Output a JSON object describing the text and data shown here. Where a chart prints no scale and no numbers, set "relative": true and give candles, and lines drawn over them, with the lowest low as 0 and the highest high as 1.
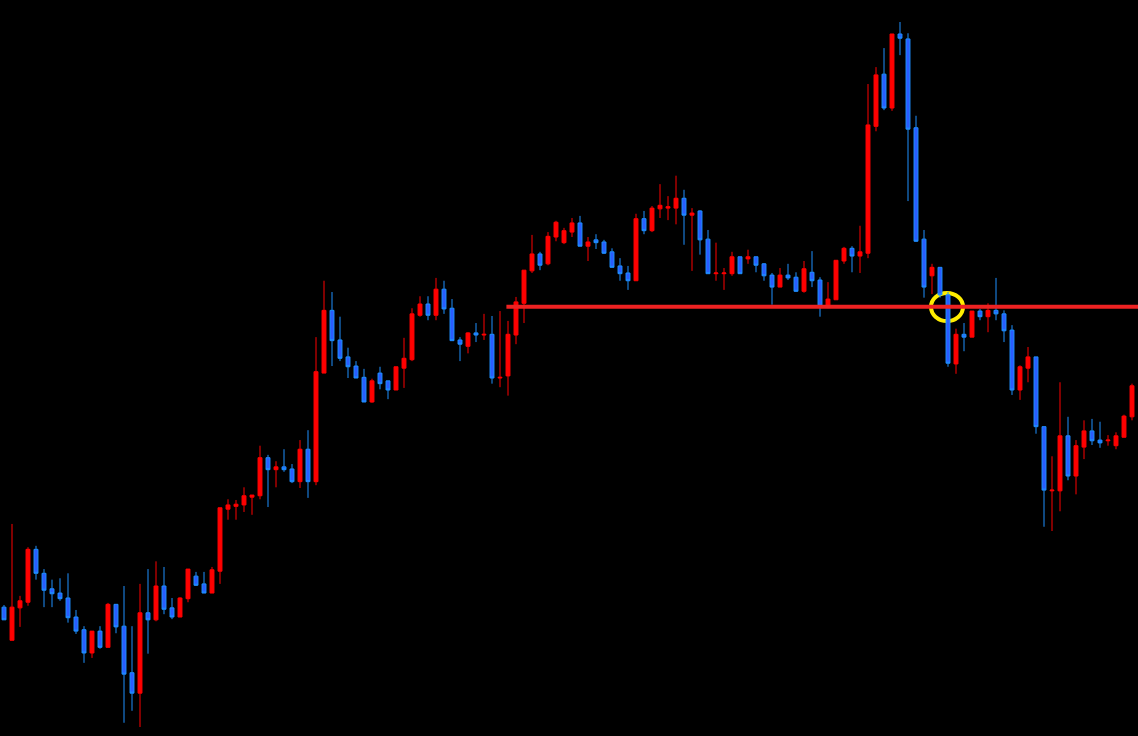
{
  "chart_data": {
    "type": "candlestick",
    "relative": true,
    "grid": false,
    "legend": false,
    "categories": [
      null,
      null,
      null,
      null,
      null,
      null,
      null,
      null,
      null,
      null,
      null,
      null,
      null,
      null,
      null,
      null,
      null,
      null,
      null,
      null,
      null,
      null,
      null,
      null,
      null,
      null,
      null,
      null,
      null,
      null,
      null,
      null,
      null,
      null,
      null,
      null,
      null,
      null,
      null,
      null,
      null,
      null,
      null,
      null,
      null,
      null,
      null,
      null,
      null,
      null,
      null,
      null,
      null,
      null,
      null,
      null,
      null,
      null,
      null,
      null,
      null,
      null,
      null,
      null,
      null,
      null,
      null,
      null,
      null,
      null,
      null,
      null,
      null,
      null,
      null,
      null,
      null,
      null,
      null,
      null,
      null,
      null,
      null,
      null,
      null,
      null,
      null,
      null,
      null,
      null,
      null,
      null,
      null,
      null,
      null,
      null,
      null,
      null,
      null,
      null,
      null,
      null,
      null,
      null,
      null,
      null,
      null,
      null,
      null,
      null,
      null,
      null,
      null,
      null,
      null,
      null,
      null,
      null,
      null,
      null,
      null,
      null,
      null,
      null,
      null,
      null,
      null,
      null,
      null,
      null,
      null,
      null,
      null,
      null,
      null,
      null,
      null,
      null,
      null,
      null,
      null,
      null
    ],
    "ohlc": [
      [
        0.17,
        0.173,
        0.152,
        0.152
      ],
      [
        0.123,
        0.288,
        0.123,
        0.17
      ],
      [
        0.169,
        0.186,
        0.142,
        0.179
      ],
      [
        0.177,
        0.255,
        0.172,
        0.252
      ],
      [
        0.252,
        0.257,
        0.209,
        0.218
      ],
      [
        0.218,
        0.224,
        0.17,
        0.194
      ],
      [
        0.196,
        0.209,
        0.17,
        0.189
      ],
      [
        0.19,
        0.211,
        0.179,
        0.182
      ],
      [
        0.183,
        0.218,
        0.148,
        0.155
      ],
      [
        0.156,
        0.166,
        0.132,
        0.136
      ],
      [
        0.138,
        0.143,
        0.091,
        0.105
      ],
      [
        0.105,
        0.136,
        0.098,
        0.136
      ],
      [
        0.136,
        0.143,
        0.111,
        0.113
      ],
      [
        0.113,
        0.176,
        0.113,
        0.174
      ],
      [
        0.174,
        0.174,
        0.133,
        0.142
      ],
      [
        0.143,
        0.2,
        0.006,
        0.075
      ],
      [
        0.077,
        0.143,
        0.023,
        0.048
      ],
      [
        0.048,
        0.203,
        0,
        0.162
      ],
      [
        0.162,
        0.224,
        0.104,
        0.152
      ],
      [
        0.152,
        0.235,
        0.15,
        0.2
      ],
      [
        0.2,
        0.227,
        0.16,
        0.167
      ],
      [
        0.169,
        0.183,
        0.153,
        0.156
      ],
      [
        0.156,
        0.184,
        0.156,
        0.183
      ],
      [
        0.182,
        0.224,
        0.177,
        0.224
      ],
      [
        0.214,
        0.22,
        0.2,
        0.201
      ],
      [
        0.203,
        0.22,
        0.19,
        0.19
      ],
      [
        0.19,
        0.227,
        0.19,
        0.223
      ],
      [
        0.221,
        0.311,
        0.203,
        0.311
      ],
      [
        0.309,
        0.323,
        0.294,
        0.315
      ],
      [
        0.313,
        0.322,
        0.294,
        0.316
      ],
      [
        0.315,
        0.34,
        0.305,
        0.328
      ],
      [
        0.326,
        0.329,
        0.301,
        0.329
      ],
      [
        0.328,
        0.399,
        0.323,
        0.382
      ],
      [
        0.382,
        0.386,
        0.312,
        0.365
      ],
      [
        0.365,
        0.377,
        0.34,
        0.369
      ],
      [
        0.369,
        0.394,
        0.362,
        0.365
      ],
      [
        0.366,
        0.373,
        0.346,
        0.348
      ],
      [
        0.348,
        0.407,
        0.339,
        0.394
      ],
      [
        0.394,
        0.421,
        0.325,
        0.348
      ],
      [
        0.348,
        0.553,
        0.343,
        0.504
      ],
      [
        0.502,
        0.633,
        0.502,
        0.591
      ],
      [
        0.591,
        0.617,
        0.512,
        0.548
      ],
      [
        0.549,
        0.582,
        0.519,
        0.523
      ],
      [
        0.525,
        0.538,
        0.495,
        0.511
      ],
      [
        0.512,
        0.519,
        0.495,
        0.495
      ],
      [
        0.496,
        0.508,
        0.461,
        0.461
      ],
      [
        0.461,
        0.494,
        0.46,
        0.491
      ],
      [
        0.502,
        0.511,
        0.479,
        0.487
      ],
      [
        0.491,
        0.491,
        0.465,
        0.478
      ],
      [
        0.478,
        0.511,
        0.478,
        0.511
      ],
      [
        0.509,
        0.552,
        0.481,
        0.523
      ],
      [
        0.521,
        0.594,
        0.519,
        0.586
      ],
      [
        0.584,
        0.611,
        0.582,
        0.6
      ],
      [
        0.6,
        0.611,
        0.577,
        0.584
      ],
      [
        0.584,
        0.637,
        0.577,
        0.621
      ],
      [
        0.621,
        0.633,
        0.586,
        0.593
      ],
      [
        0.594,
        0.607,
        0.548,
        0.548
      ],
      [
        0.549,
        0.553,
        0.519,
        0.543
      ],
      [
        0.54,
        0.56,
        0.53,
        0.559
      ],
      [
        0.559,
        0.573,
        0.546,
        0.556
      ],
      [
        0.556,
        0.586,
        0.549,
        0.557
      ],
      [
        0.557,
        0.583,
        0.487,
        0.495
      ],
      [
        0.495,
        0.59,
        0.482,
        0.496
      ],
      [
        0.498,
        0.576,
        0.47,
        0.557
      ],
      [
        0.556,
        0.61,
        0.543,
        0.603
      ],
      [
        0.601,
        0.648,
        0.573,
        0.648
      ],
      [
        0.647,
        0.698,
        0.644,
        0.671
      ],
      [
        0.671,
        0.674,
        0.648,
        0.655
      ],
      [
        0.657,
        0.702,
        0.655,
        0.696
      ],
      [
        0.695,
        0.718,
        0.689,
        0.716
      ],
      [
        0.687,
        0.708,
        0.685,
        0.704
      ],
      [
        0.702,
        0.722,
        0.695,
        0.715
      ],
      [
        0.715,
        0.725,
        0.682,
        0.682
      ],
      [
        0.682,
        0.695,
        0.661,
        0.688
      ],
      [
        0.691,
        0.699,
        0.678,
        0.687
      ],
      [
        0.688,
        0.691,
        0.671,
        0.672
      ],
      [
        0.674,
        0.679,
        0.652,
        0.652
      ],
      [
        0.654,
        0.665,
        0.633,
        0.643
      ],
      [
        0.644,
        0.654,
        0.62,
        0.633
      ],
      [
        0.633,
        0.728,
        0.633,
        0.721
      ],
      [
        0.721,
        0.732,
        0.699,
        0.704
      ],
      [
        0.704,
        0.739,
        0.702,
        0.736
      ],
      [
        0.735,
        0.77,
        0.722,
        0.74
      ],
      [
        0.736,
        0.753,
        0.719,
        0.738
      ],
      [
        0.736,
        0.782,
        0.713,
        0.75
      ],
      [
        0.75,
        0.762,
        0.684,
        0.726
      ],
      [
        0.726,
        0.736,
        0.647,
        0.729
      ],
      [
        0.732,
        0.733,
        0.67,
        0.691
      ],
      [
        0.692,
        0.705,
        0.643,
        0.643
      ],
      [
        0.643,
        0.687,
        0.633,
        0.644
      ],
      [
        0.643,
        0.651,
        0.62,
        0.644
      ],
      [
        0.643,
        0.674,
        0.64,
        0.667
      ],
      [
        0.667,
        0.667,
        0.643,
        0.643
      ],
      [
        0.664,
        0.677,
        0.657,
        0.667
      ],
      [
        0.667,
        0.667,
        0.645,
        0.655
      ],
      [
        0.657,
        0.658,
        0.633,
        0.64
      ],
      [
        0.641,
        0.644,
        0.599,
        0.624
      ],
      [
        0.624,
        0.651,
        0.624,
        0.641
      ],
      [
        0.641,
        0.657,
        0.634,
        0.637
      ],
      [
        0.638,
        0.645,
        0.617,
        0.618
      ],
      [
        0.618,
        0.661,
        0.616,
        0.65
      ],
      [
        0.645,
        0.675,
        0.624,
        0.633
      ],
      [
        0.634,
        0.638,
        0.582,
        0.597
      ],
      [
        0.597,
        0.631,
        0.594,
        0.607
      ],
      [
        0.606,
        0.662,
        0.606,
        0.662
      ],
      [
        0.661,
        0.681,
        0.657,
        0.679
      ],
      [
        0.679,
        0.682,
        0.645,
        0.668
      ],
      [
        0.668,
        0.711,
        0.644,
        0.674
      ],
      [
        0.672,
        0.912,
        0.665,
        0.854
      ],
      [
        0.852,
        0.936,
        0.845,
        0.925
      ],
      [
        0.926,
        0.963,
        0.875,
        0.878
      ],
      [
        0.878,
        0.983,
        0.874,
        0.983
      ],
      [
        0.983,
        1,
        0.953,
        0.977
      ],
      [
        0.976,
        0.984,
        0.746,
        0.848
      ],
      [
        0.85,
        0.867,
        0.688,
        0.689
      ],
      [
        0.692,
        0.705,
        0.609,
        0.624
      ],
      [
        0.64,
        0.657,
        0.614,
        0.652
      ],
      [
        0.652,
        0.652,
        0.609,
        0.613
      ],
      [
        0.613,
        0.617,
        0.511,
        0.516
      ],
      [
        0.515,
        0.565,
        0.501,
        0.557
      ],
      [
        0.557,
        0.573,
        0.533,
        0.553
      ],
      [
        0.553,
        0.59,
        0.553,
        0.59
      ],
      [
        0.59,
        0.593,
        0.577,
        0.582
      ],
      [
        0.582,
        0.601,
        0.56,
        0.591
      ],
      [
        0.591,
        0.637,
        0.577,
        0.586
      ],
      [
        0.586,
        0.591,
        0.546,
        0.562
      ],
      [
        0.563,
        0.57,
        0.471,
        0.478
      ],
      [
        0.478,
        0.513,
        0.464,
        0.511
      ],
      [
        0.509,
        0.539,
        0.489,
        0.525
      ],
      [
        0.525,
        0.525,
        0.416,
        0.426
      ],
      [
        0.426,
        0.426,
        0.284,
        0.336
      ],
      [
        0.335,
        0.384,
        0.278,
        0.336
      ],
      [
        0.335,
        0.489,
        0.306,
        0.413
      ],
      [
        0.413,
        0.44,
        0.35,
        0.356
      ],
      [
        0.356,
        0.407,
        0.33,
        0.399
      ],
      [
        0.397,
        0.435,
        0.38,
        0.42
      ],
      [
        0.42,
        0.437,
        0.4,
        0.406
      ],
      [
        0.407,
        0.433,
        0.396,
        0.403
      ],
      [
        0.406,
        0.414,
        0.399,
        0.407
      ],
      [
        0.399,
        0.418,
        0.394,
        0.413
      ],
      [
        0.411,
        0.443,
        0.411,
        0.441
      ],
      [
        0.44,
        0.487,
        0.435,
        0.484
      ]
    ],
    "ref_lines": [
      {
        "axis": "y",
        "value": 0.596,
        "color": "#ee2222"
      }
    ]
  }
}
